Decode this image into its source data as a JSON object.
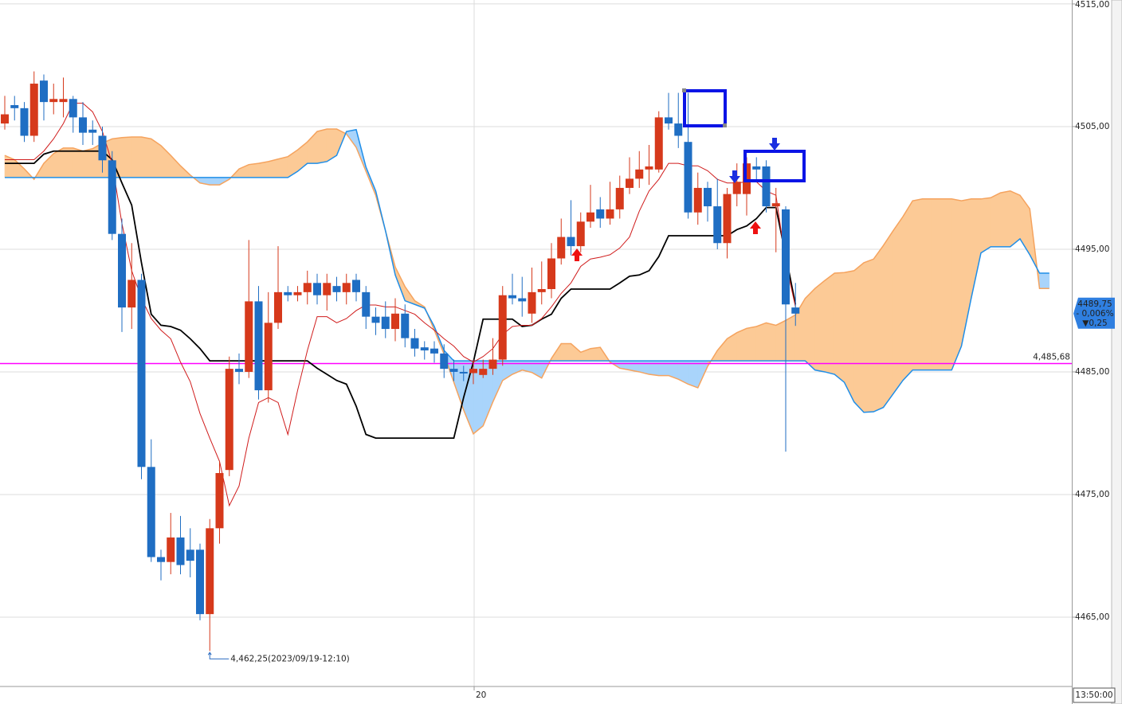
{
  "chart_data": {
    "type": "candlestick",
    "categories": [
      null,
      null,
      null,
      null,
      null,
      null,
      null,
      null,
      null,
      null,
      null,
      null,
      null,
      null,
      null,
      null,
      null,
      null,
      null,
      null,
      null,
      null,
      null,
      null,
      null,
      null,
      null,
      null,
      null,
      null,
      null,
      null,
      null,
      null,
      null,
      null,
      null,
      null,
      null,
      null,
      null,
      null,
      null,
      null,
      null,
      null,
      null,
      null,
      "20",
      null,
      null,
      null,
      null,
      null,
      null,
      null,
      null,
      null,
      null,
      null,
      null,
      null,
      null,
      null,
      null,
      null,
      null,
      null,
      null,
      null,
      null,
      null,
      null,
      null,
      null,
      null,
      null,
      null,
      null,
      null,
      null,
      null,
      null,
      null,
      null,
      null,
      null,
      null,
      null,
      null,
      null,
      null,
      null,
      null,
      null,
      null,
      null,
      null,
      null,
      null,
      null,
      null,
      null,
      null,
      null,
      null,
      null,
      null
    ],
    "ylim": [
      4459.35,
      4515.32
    ],
    "yticks": [
      {
        "value": 4465,
        "label": "4465,00"
      },
      {
        "value": 4475,
        "label": "4475,00"
      },
      {
        "value": 4485,
        "label": "4485,00"
      },
      {
        "value": 4495,
        "label": "4495,00"
      },
      {
        "value": 4505,
        "label": "4505,00"
      },
      {
        "value": 4515,
        "label": "4515,00"
      }
    ],
    "grid": true,
    "up_color": "#d6391b",
    "down_color": "#1f6ec3",
    "open": [
      4505.25,
      4506.75,
      4506.5,
      4504.25,
      4508.75,
      4507,
      4507,
      4507.25,
      4505.75,
      4504.75,
      4504.25,
      4502.25,
      4496.25,
      4490.25,
      4492.5,
      4477.25,
      4469.9,
      4469.5,
      4471.5,
      4470.5,
      4470.5,
      4465.25,
      4472.25,
      4477,
      4485.25,
      4485,
      4490.75,
      4483.5,
      4489,
      4491.5,
      4491.25,
      4491.5,
      4492.25,
      4491.25,
      4492,
      4491.5,
      4492.5,
      4491.5,
      4489.5,
      4489.5,
      4488.5,
      4489.75,
      4487.75,
      4487,
      4486.9,
      4486.5,
      4485.25,
      4485,
      4484.9,
      4484.75,
      4485.25,
      4486,
      4491.25,
      4491,
      4489.75,
      4491.5,
      4491.75,
      4494.25,
      4496,
      4495.25,
      4497.25,
      4498.25,
      4497.5,
      4498.25,
      4500,
      4500.75,
      4501.5,
      4501.5,
      4505.75,
      4505.25,
      4503.75,
      4498,
      4500,
      4498.5,
      4495.5,
      4499.5,
      4499.5,
      4501.75,
      4501.75,
      4498.5,
      4498.25,
      4490.25,
      null,
      null,
      null,
      null,
      null,
      null,
      null,
      null,
      null,
      null,
      null,
      null,
      null,
      null,
      null,
      null,
      null,
      null,
      null,
      null,
      null,
      null,
      null,
      null,
      null,
      null
    ],
    "high": [
      4507.5,
      4507.5,
      4507,
      4509.5,
      4509.25,
      4508.5,
      4509,
      4507.5,
      4507,
      4505.5,
      4505,
      4503,
      4497.5,
      4495.5,
      4493,
      4479.5,
      4470.5,
      4473.5,
      4473.25,
      4472.25,
      4471,
      4473,
      4477.75,
      4486.25,
      4486.5,
      4495.75,
      4492,
      4491.5,
      4495.25,
      4492,
      4492,
      4493.25,
      4493,
      4493,
      4492.75,
      4493,
      4493,
      4492,
      4490.25,
      4490.75,
      4491,
      4490.5,
      4488.5,
      4487.5,
      4487.5,
      4487.25,
      4486,
      4485.5,
      4486,
      4486,
      4487.75,
      4492,
      4493,
      4492.75,
      4493.5,
      4494,
      4495.5,
      4497.5,
      4499,
      4498,
      4500.25,
      4499.25,
      4500.5,
      4501,
      4502.5,
      4503,
      4503.5,
      4506.25,
      4507.75,
      4507.75,
      4507.75,
      4501.25,
      4500.5,
      4500.75,
      4500,
      4502,
      4502.5,
      4502.5,
      4502.25,
      4500,
      4498.5,
      4492.25,
      null,
      null,
      null,
      null,
      null,
      null,
      null,
      null,
      null,
      null,
      null,
      null,
      null,
      null,
      null,
      null,
      null,
      null,
      null,
      null,
      null,
      null,
      null,
      null,
      null,
      null
    ],
    "low": [
      4504.75,
      4505.5,
      4503.75,
      4503.75,
      4505.5,
      4506,
      4505.75,
      4504.5,
      4503.5,
      4503.5,
      4501.25,
      4495.75,
      4488.25,
      4488.5,
      4476.25,
      4469.5,
      4468,
      4468.5,
      4468.5,
      4468.25,
      4464.75,
      4462.25,
      4471,
      4476.5,
      4484,
      4484.5,
      4482.75,
      4482.5,
      4488.5,
      4490.75,
      4490.75,
      4490.5,
      4490.5,
      4490,
      4490.75,
      4490.5,
      4490.75,
      4488.5,
      4488,
      4487.75,
      4487.5,
      4487,
      4486.25,
      4486,
      4485.75,
      4484.5,
      4484.25,
      4484.25,
      4484,
      4484.5,
      4484.75,
      4485.5,
      4490.5,
      4489.5,
      4489,
      4490.5,
      4491,
      4493.75,
      4494.5,
      4494.75,
      4496.75,
      4496.75,
      4497,
      4497.5,
      4499.5,
      4500,
      4500.25,
      4501.25,
      4504.75,
      4503.25,
      4497.5,
      4497,
      4497.25,
      4495,
      4494.25,
      4498.5,
      4497.75,
      4500.5,
      4498,
      4494.75,
      4478.5,
      4488.75,
      null,
      null,
      null,
      null,
      null,
      null,
      null,
      null,
      null,
      null,
      null,
      null,
      null,
      null,
      null,
      null,
      null,
      null,
      null,
      null,
      null,
      null,
      null,
      null,
      null,
      null
    ],
    "close": [
      4506,
      4506.5,
      4504.25,
      4508.5,
      4507,
      4507.25,
      4507.25,
      4505.75,
      4504.5,
      4504.5,
      4502.25,
      4496.25,
      4490.25,
      4492.5,
      4477.25,
      4469.9,
      4469.5,
      4471.5,
      4469.25,
      4469.6,
      4465.25,
      4472.25,
      4476.75,
      4485.25,
      4485,
      4490.75,
      4483.5,
      4489,
      4491.5,
      4491.25,
      4491.5,
      4492.25,
      4491.25,
      4492.25,
      4491.5,
      4492.25,
      4491.5,
      4489.5,
      4489,
      4488.5,
      4489.75,
      4487.75,
      4486.9,
      4486.75,
      4486.5,
      4485.25,
      4485,
      4484.9,
      4485.25,
      4485.25,
      4486,
      4491.25,
      4491,
      4490.75,
      4491.5,
      4491.75,
      4494.25,
      4496,
      4495.25,
      4497.25,
      4498,
      4497.5,
      4498.25,
      4500,
      4500.75,
      4501.5,
      4501.75,
      4505.75,
      4505.25,
      4504.25,
      4498,
      4500,
      4498.5,
      4495.5,
      4499.5,
      4500.5,
      4502,
      4501.5,
      4498.5,
      4498.75,
      4490.5,
      4489.75,
      null,
      null,
      null,
      null,
      null,
      null,
      null,
      null,
      null,
      null,
      null,
      null,
      null,
      null,
      null,
      null,
      null,
      null,
      null,
      null,
      null,
      null,
      null,
      null,
      null,
      null
    ],
    "lines": [
      {
        "color": "#000000",
        "values": [
          4502,
          4502,
          4502,
          4502,
          4502.75,
          4503,
          4503,
          4503,
          4503,
          4503,
          4503,
          4502.3,
          4500.4,
          4498.6,
          4493.9,
          4489.7,
          4488.8,
          4488.7,
          4488.4,
          4487.7,
          4486.9,
          4485.9,
          4485.9,
          4485.9,
          4485.9,
          4485.9,
          4485.9,
          4485.9,
          4485.9,
          4485.9,
          4485.9,
          4485.9,
          4485.3,
          4484.8,
          4484.3,
          4484,
          4482.2,
          4479.9,
          4479.6,
          4479.6,
          4479.6,
          4479.6,
          4479.6,
          4479.6,
          4479.6,
          4479.6,
          4479.6,
          4482.9,
          4485.8,
          4489.3,
          4489.3,
          4489.3,
          4489.3,
          4488.7,
          4488.8,
          4489.3,
          4489.7,
          4491,
          4491.75,
          4491.75,
          4491.75,
          4491.75,
          4491.75,
          4492.25,
          4492.8,
          4492.9,
          4493.25,
          4494.4,
          4496.1,
          4496.1,
          4496.1,
          4496.1,
          4496.1,
          4496.1,
          4496.1,
          4496.6,
          4496.9,
          4497.5,
          4498.4,
          4498.4,
          4494.5,
          4490.5,
          null,
          null,
          null,
          null,
          null,
          null,
          null,
          null,
          null,
          null,
          null,
          null,
          null,
          null,
          null,
          null,
          null,
          null,
          null,
          null,
          null,
          null,
          null,
          null,
          null,
          null
        ]
      },
      {
        "color": "#d01c1c",
        "values": [
          4502.3,
          4502.3,
          4502.3,
          4502.3,
          4503,
          4504,
          4505.25,
          4506.9,
          4506.9,
          4506.2,
          4504.6,
          4502,
          4497.1,
          4493.25,
          4491,
          4489.35,
          4488.4,
          4487.7,
          4485.8,
          4484.2,
          4481.6,
          4479.6,
          4477.7,
          4474.1,
          4475.7,
          4479.6,
          4482.5,
          4482.9,
          4482.5,
          4479.9,
          4483.5,
          4486.75,
          4489.5,
          4489.5,
          4489,
          4489.35,
          4490,
          4490.45,
          4490.45,
          4490.3,
          4490.3,
          4490,
          4489.7,
          4489,
          4488.4,
          4487.7,
          4487.1,
          4486.25,
          4485.8,
          4486.25,
          4486.9,
          4488.05,
          4488.7,
          4488.8,
          4488.8,
          4489.35,
          4490.3,
          4491.4,
          4492.25,
          4493.6,
          4494.2,
          4494.35,
          4494.55,
          4495.1,
          4496,
          4498.1,
          4499.75,
          4500.7,
          4502,
          4502,
          4501.8,
          4501.8,
          4501.4,
          4500.7,
          4500.4,
          4500.4,
          4500.5,
          4500.5,
          4499.75,
          4499.4,
          4493.9,
          4490.3,
          null,
          null,
          null,
          null,
          null,
          null,
          null,
          null,
          null,
          null,
          null,
          null,
          null,
          null,
          null,
          null,
          null,
          null,
          null,
          null,
          null,
          null,
          null,
          null,
          null,
          null
        ]
      }
    ],
    "cloud": {
      "span_a": {
        "color": "#f5a35e",
        "fill": "#fcca96",
        "values": [
          4502.65,
          4502.3,
          4501.55,
          4500.7,
          4502,
          4502.8,
          4503.25,
          4503.25,
          4503,
          4503.2,
          4503.65,
          4504,
          4504.1,
          4504.15,
          4504.15,
          4504,
          4503.45,
          4502.65,
          4501.8,
          4501.05,
          4500.4,
          4500.25,
          4500.25,
          4500.7,
          4501.55,
          4501.9,
          4502,
          4502.15,
          4502.35,
          4502.55,
          4503.1,
          4503.75,
          4504.6,
          4504.8,
          4504.8,
          4504.4,
          4503.3,
          4501.35,
          4499.4,
          4496.5,
          4493.55,
          4491.95,
          4490.8,
          4490.3,
          4488.4,
          4486.45,
          4484.15,
          4481.9,
          4479.95,
          4480.6,
          4482.55,
          4484.3,
          4484.8,
          4485.15,
          4484.95,
          4484.5,
          4486.1,
          4487.3,
          4487.3,
          4486.6,
          4486.9,
          4487,
          4485.8,
          4485.3,
          4485.15,
          4485,
          4484.8,
          4484.7,
          4484.7,
          4484.4,
          4484,
          4483.7,
          4485.45,
          4486.75,
          4487.7,
          4488.2,
          4488.55,
          4488.7,
          4489,
          4488.8,
          4489.2,
          4489.65,
          4491,
          4491.8,
          4492.45,
          4493.05,
          4493.1,
          4493.25,
          4493.9,
          4494.2,
          4495.3,
          4496.5,
          4497.65,
          4498.95,
          4499.1,
          4499.1,
          4499.1,
          4499.1,
          4498.95,
          4499.1,
          4499.1,
          4499.2,
          4499.6,
          4499.75,
          4499.4,
          4498.3,
          4491.8,
          4491.8
        ]
      },
      "span_b": {
        "color": "#1f8ee8",
        "fill": "#a9d4fb",
        "values": [
          4500.85,
          4500.85,
          4500.85,
          4500.85,
          4500.85,
          4500.85,
          4500.85,
          4500.85,
          4500.85,
          4500.85,
          4500.85,
          4500.85,
          4500.85,
          4500.85,
          4500.85,
          4500.85,
          4500.85,
          4500.85,
          4500.85,
          4500.85,
          4500.85,
          4500.85,
          4500.85,
          4500.85,
          4500.85,
          4500.85,
          4500.85,
          4500.85,
          4500.85,
          4500.85,
          4501.35,
          4502,
          4502,
          4502.15,
          4502.65,
          4504.6,
          4504.75,
          4501.7,
          4499.75,
          4496.5,
          4492.9,
          4490.8,
          4490.5,
          4490.2,
          4488.7,
          4486.75,
          4485.9,
          4485.9,
          4485.9,
          4485.9,
          4485.9,
          4485.9,
          4485.9,
          4485.9,
          4485.9,
          4485.9,
          4485.9,
          4485.9,
          4485.9,
          4485.9,
          4485.9,
          4485.9,
          4485.9,
          4485.9,
          4485.9,
          4485.9,
          4485.9,
          4485.9,
          4485.9,
          4485.9,
          4485.9,
          4485.9,
          4485.9,
          4485.9,
          4485.9,
          4485.9,
          4485.9,
          4485.9,
          4485.9,
          4485.9,
          4485.9,
          4485.9,
          4485.9,
          4485.15,
          4485,
          4484.8,
          4484.15,
          4482.55,
          4481.7,
          4481.75,
          4482.1,
          4483.2,
          4484.3,
          4485.15,
          4485.15,
          4485.15,
          4485.15,
          4485.15,
          4487.1,
          4491,
          4494.7,
          4495.2,
          4495.2,
          4495.2,
          4495.85,
          4494.55,
          4493.05,
          4493.05
        ]
      }
    },
    "ref_line": {
      "value": 4485.68,
      "label": "4,485,68",
      "color": "#ff00ff"
    },
    "current": {
      "value": 4489.75,
      "label": "4489,75",
      "change": "- 0,006%",
      "delta": "▼0,25",
      "color": "#2f7fe0"
    },
    "low_note": {
      "value": 4462.25,
      "label": "4,462,25(2023/09/19-12:10)"
    },
    "time_label": "13:50:00"
  }
}
